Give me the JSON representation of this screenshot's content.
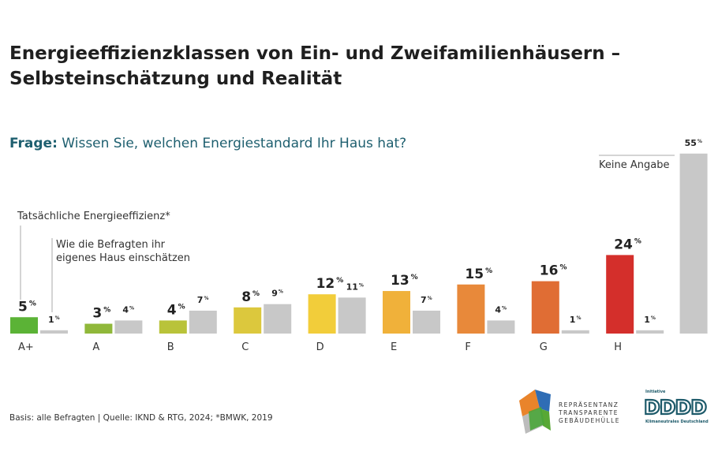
{
  "title_line1": "Energieeffizienzklassen von Ein- und Zweifamilienhäusern –",
  "title_line2": "Selbsteinschätzung und Realität",
  "question_label": "Frage:",
  "question_text": "Wissen Sie, welchen Energiestandard Ihr Haus hat?",
  "annotation_actual": "Tatsächliche Energieeffizienz*",
  "annotation_self_1": "Wie die Befragten ihr",
  "annotation_self_2": "eigenes Haus einschätzen",
  "annotation_noanswer": "Keine Angabe",
  "source": "Basis: alle Befragten | Quelle: IKND & RTG, 2024; *BMWK, 2019",
  "logo_repraesentanz": [
    "REPRÄSENTANZ",
    "TRANSPARENTE",
    "GEBÄUDEHÜLLE"
  ],
  "logo_initiative": {
    "top": "Initiative",
    "mark": "DDDD",
    "bottom": "Klimaneutrales Deutschland"
  },
  "chart_data": {
    "type": "bar",
    "categories": [
      "A+",
      "A",
      "B",
      "C",
      "D",
      "E",
      "F",
      "G",
      "H"
    ],
    "unit": "%",
    "series": [
      {
        "values": [
          5,
          3,
          4,
          8,
          12,
          13,
          15,
          16,
          24
        ],
        "colors": [
          "#5bb336",
          "#90b83a",
          "#b9c33a",
          "#dcc83d",
          "#f2cd3a",
          "#f0b13a",
          "#e8893a",
          "#e06d34",
          "#d42f2b"
        ]
      },
      {
        "values": [
          1,
          4,
          7,
          9,
          11,
          7,
          4,
          1,
          1
        ],
        "color": "#c8c8c8"
      }
    ],
    "no_answer": {
      "label": "Keine Angabe",
      "value": 55,
      "color": "#c8c8c8"
    }
  }
}
